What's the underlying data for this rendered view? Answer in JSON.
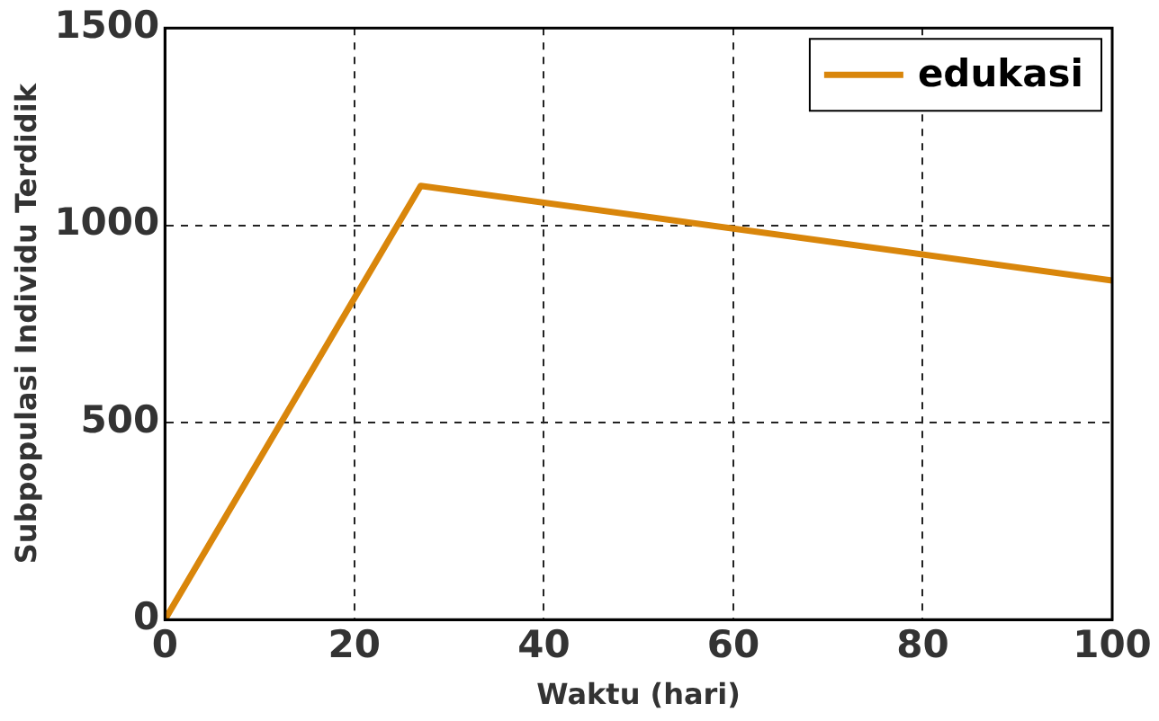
{
  "chart_data": {
    "type": "line",
    "xlabel": "Waktu (hari)",
    "ylabel": "Subpopulasi Individu Terdidik",
    "series": [
      {
        "name": "edukasi",
        "color": "#d9860b",
        "x": [
          0,
          27,
          100
        ],
        "values": [
          0,
          1100,
          860
        ]
      }
    ],
    "xlim": [
      0,
      100
    ],
    "xticks": [
      0,
      20,
      40,
      60,
      80,
      100
    ],
    "ylim": [
      0,
      1500
    ],
    "yticks": [
      0,
      500,
      1000,
      1500
    ],
    "grid": true,
    "legend": "top right",
    "marker": "none",
    "line_style": "solid"
  }
}
